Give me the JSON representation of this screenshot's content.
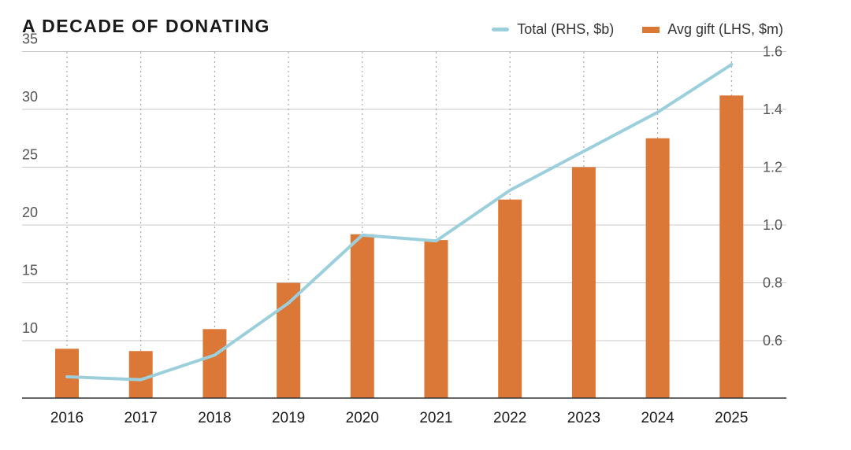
{
  "colors": {
    "bar": "#dc7837",
    "line": "#9ccfdc",
    "grid": "#c8c8c8",
    "axis": "#333333"
  },
  "chart_data": {
    "type": "bar+line",
    "title": "A DECADE OF DONATING",
    "categories": [
      "2016",
      "2017",
      "2018",
      "2019",
      "2020",
      "2021",
      "2022",
      "2023",
      "2024",
      "2025"
    ],
    "series": [
      {
        "name": "Avg gift (LHS, $m)",
        "type": "bar",
        "axis": "left",
        "values": [
          9.3,
          9.1,
          11.0,
          15.0,
          19.2,
          18.7,
          22.2,
          25.0,
          27.5,
          31.2
        ]
      },
      {
        "name": "Total (RHS, $b)",
        "type": "line",
        "axis": "right",
        "values": [
          0.475,
          0.465,
          0.55,
          0.73,
          0.965,
          0.945,
          1.12,
          1.255,
          1.39,
          1.555
        ]
      }
    ],
    "yleft": {
      "ticks": [
        "35",
        "30",
        "25",
        "20",
        "15",
        "10"
      ]
    },
    "yright": {
      "ticks": [
        "1.6",
        "1.4",
        "1.2",
        "1.0",
        "0.8",
        "0.6"
      ]
    },
    "grid": true,
    "legend": "top-right"
  }
}
